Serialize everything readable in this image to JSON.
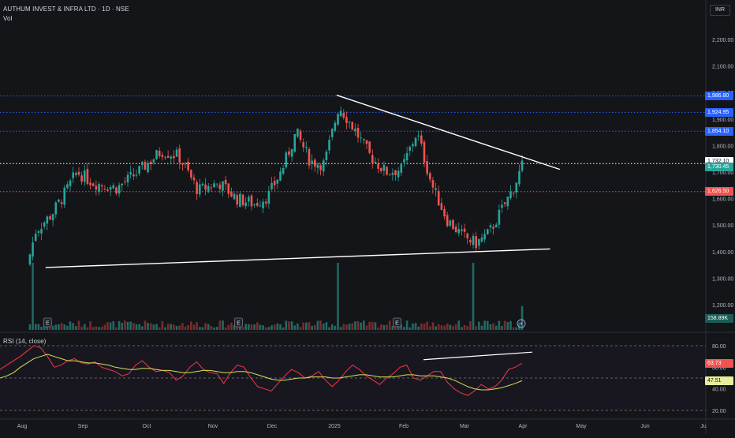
{
  "header": {
    "title": "AUTHUM INVEST & INFRA LTD · 1D · NSE",
    "volume_label": "Vol",
    "currency": "INR"
  },
  "rsi_header": {
    "label": "RSI (14, close)"
  },
  "colors": {
    "background": "#141519",
    "up": "#26a69a",
    "down": "#ef5350",
    "level_line": "#2962ff",
    "rsi_line": "#f23645",
    "rsi_ma": "#d4e157",
    "trendline": "#ffffff"
  },
  "price_tags": [
    {
      "label": "1,986.80",
      "value": 1986.8,
      "color": "#2962ff",
      "text_color": "#ffffff"
    },
    {
      "label": "1,924.95",
      "value": 1924.95,
      "color": "#2962ff",
      "text_color": "#ffffff"
    },
    {
      "label": "1,854.10",
      "value": 1854.1,
      "color": "#2962ff",
      "text_color": "#ffffff"
    },
    {
      "label": "1,732.10",
      "value": 1732.1,
      "color": "#ffffff",
      "text_color": "#131722"
    },
    {
      "label": "1,730.45",
      "value": 1730.45,
      "color": "#26a69a",
      "text_color": "#ffffff"
    },
    {
      "label": "1,626.50",
      "value": 1626.5,
      "color": "#ef5350",
      "text_color": "#ffffff"
    }
  ],
  "volume_tag": {
    "label": "158.89K",
    "color": "#1b5e56"
  },
  "rsi_tags": [
    {
      "label": "63.73",
      "value": 63.73,
      "color": "#ef5350",
      "text_color": "#ffffff"
    },
    {
      "label": "47.51",
      "value": 47.51,
      "color": "#e6ee9c",
      "text_color": "#131722"
    }
  ],
  "event_markers": [
    {
      "label": "E",
      "date": "Aug 14"
    },
    {
      "label": "E",
      "date": "Nov 14"
    },
    {
      "label": "E",
      "date": "Jan 29"
    }
  ],
  "chart_data": [
    {
      "type": "candlestick",
      "title": "AUTHUM INVEST & INFRA LTD · 1D · NSE",
      "currency": "INR",
      "y_ticks": [
        1200,
        1300,
        1400,
        1500,
        1600,
        1700,
        1800,
        1900,
        2000,
        2100,
        2200
      ],
      "y_tick_labels": [
        "1,200.00",
        "1,300.00",
        "1,400.00",
        "1,500.00",
        "1,600.00",
        "1,700.00",
        "1,800.00",
        "1,900.00",
        "2,000.00",
        "2,100.00",
        "2,200.00"
      ],
      "x_tick_labels": [
        "Aug",
        "Sep",
        "Oct",
        "Nov",
        "Dec",
        "2025",
        "Feb",
        "Mar",
        "Apr",
        "May",
        "Jun",
        "Ju"
      ],
      "price_anchors": [
        {
          "x": "Aug 5",
          "close": 1390
        },
        {
          "x": "Aug 8",
          "close": 1480
        },
        {
          "x": "Aug 16",
          "close": 1540
        },
        {
          "x": "Aug 22",
          "close": 1610
        },
        {
          "x": "Aug 29",
          "close": 1700
        },
        {
          "x": "Sep 6",
          "close": 1660
        },
        {
          "x": "Sep 17",
          "close": 1640
        },
        {
          "x": "Sep 27",
          "close": 1700
        },
        {
          "x": "Oct 8",
          "close": 1780
        },
        {
          "x": "Oct 16",
          "close": 1760
        },
        {
          "x": "Oct 25",
          "close": 1630
        },
        {
          "x": "Nov 4",
          "close": 1660
        },
        {
          "x": "Nov 13",
          "close": 1600
        },
        {
          "x": "Nov 22",
          "close": 1580
        },
        {
          "x": "Nov 29",
          "close": 1610
        },
        {
          "x": "Dec 6",
          "close": 1710
        },
        {
          "x": "Dec 13",
          "close": 1850
        },
        {
          "x": "Dec 20",
          "close": 1740
        },
        {
          "x": "Dec 27",
          "close": 1730
        },
        {
          "x": "Jan 3",
          "close": 1950
        },
        {
          "x": "Jan 10",
          "close": 1860
        },
        {
          "x": "Jan 17",
          "close": 1760
        },
        {
          "x": "Jan 24",
          "close": 1700
        },
        {
          "x": "Jan 31",
          "close": 1710
        },
        {
          "x": "Feb 7",
          "close": 1850
        },
        {
          "x": "Feb 14",
          "close": 1650
        },
        {
          "x": "Feb 21",
          "close": 1520
        },
        {
          "x": "Feb 28",
          "close": 1460
        },
        {
          "x": "Mar 7",
          "close": 1430
        },
        {
          "x": "Mar 14",
          "close": 1470
        },
        {
          "x": "Mar 21",
          "close": 1560
        },
        {
          "x": "Mar 27",
          "close": 1640
        },
        {
          "x": "Apr 1",
          "close": 1730
        }
      ],
      "volume_events": [
        {
          "x": "Aug 6",
          "volume": "very high"
        },
        {
          "x": "Jan 2",
          "volume": "very high"
        },
        {
          "x": "Mar 5",
          "volume": "very high"
        },
        {
          "x": "Apr 1",
          "volume_label": "158.89K"
        }
      ],
      "horizontal_levels": [
        {
          "value": 1986.8,
          "style": "dotted",
          "color": "#2962ff"
        },
        {
          "value": 1924.95,
          "style": "dotted",
          "color": "#2962ff"
        },
        {
          "value": 1854.1,
          "style": "dotted",
          "color": "#2962ff"
        },
        {
          "value": 1732.1,
          "style": "dotted",
          "color": "#ffffff"
        },
        {
          "value": 1626.5,
          "style": "dotted",
          "color": "#ef5350"
        }
      ],
      "trendlines": [
        {
          "name": "resistance",
          "from": {
            "x": "Jan 2",
            "y": 1990
          },
          "to": {
            "x": "Apr 20",
            "y": 1710
          }
        },
        {
          "name": "support",
          "from": {
            "x": "Aug 13",
            "y": 1340
          },
          "to": {
            "x": "Apr 15",
            "y": 1410
          }
        }
      ]
    },
    {
      "type": "line",
      "title": "RSI (14, close)",
      "y_ticks": [
        20,
        40,
        60,
        80
      ],
      "y_tick_labels": [
        "20.00",
        "40.00",
        "60.00",
        "80.00"
      ],
      "bands": [
        80,
        50,
        20
      ],
      "series": [
        {
          "name": "RSI",
          "values": [
            58,
            62,
            66,
            70,
            75,
            80,
            78,
            70,
            60,
            62,
            66,
            68,
            64,
            63,
            65,
            60,
            58,
            56,
            52,
            54,
            62,
            66,
            60,
            56,
            57,
            55,
            48,
            52,
            60,
            65,
            58,
            55,
            54,
            45,
            55,
            62,
            60,
            50,
            42,
            40,
            38,
            45,
            52,
            58,
            55,
            50,
            52,
            56,
            48,
            42,
            48,
            56,
            62,
            58,
            52,
            48,
            44,
            50,
            54,
            60,
            62,
            50,
            48,
            52,
            56,
            56,
            46,
            40,
            36,
            34,
            38,
            44,
            40,
            42,
            48,
            58,
            60,
            63.73
          ]
        },
        {
          "name": "RSI-based MA",
          "values": [
            50,
            52,
            55,
            60,
            64,
            68,
            70,
            72,
            70,
            68,
            66,
            66,
            65,
            64,
            64,
            63,
            62,
            60,
            59,
            58,
            58,
            59,
            59,
            58,
            57,
            57,
            56,
            55,
            55,
            56,
            57,
            57,
            56,
            55,
            55,
            56,
            56,
            55,
            53,
            51,
            49,
            48,
            48,
            49,
            50,
            50,
            51,
            51,
            51,
            50,
            50,
            51,
            52,
            53,
            53,
            52,
            51,
            51,
            51,
            52,
            53,
            53,
            52,
            52,
            52,
            51,
            50,
            48,
            45,
            42,
            40,
            39,
            39,
            40,
            41,
            43,
            45,
            47.51
          ]
        }
      ],
      "last_values": {
        "RSI": 63.73,
        "RSI-based MA": 47.51
      }
    }
  ]
}
